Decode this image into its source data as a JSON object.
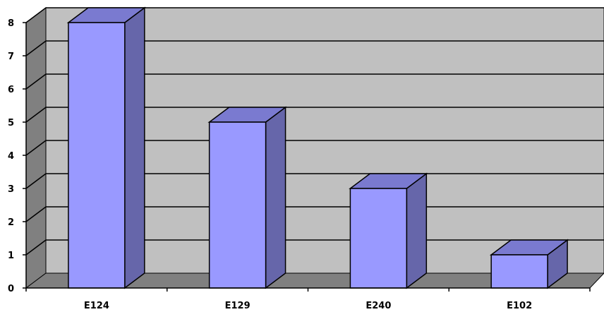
{
  "chart_data": {
    "type": "bar",
    "categories": [
      "E124",
      "E129",
      "E240",
      "E102"
    ],
    "values": [
      8,
      5,
      3,
      1
    ],
    "title": "",
    "xlabel": "",
    "ylabel": "",
    "ylim": [
      0,
      8
    ],
    "yticks": [
      "0",
      "1",
      "2",
      "3",
      "4",
      "5",
      "6",
      "7",
      "8"
    ],
    "grid": true,
    "legend": "none",
    "style": "3d-column",
    "colors": {
      "bar_front": "#9999ff",
      "bar_top": "#7a7ad0",
      "bar_side": "#6666aa",
      "plot_wall": "#c0c0c0",
      "side_wall": "#808080",
      "floor": "#808080",
      "gridline": "#000000"
    }
  }
}
